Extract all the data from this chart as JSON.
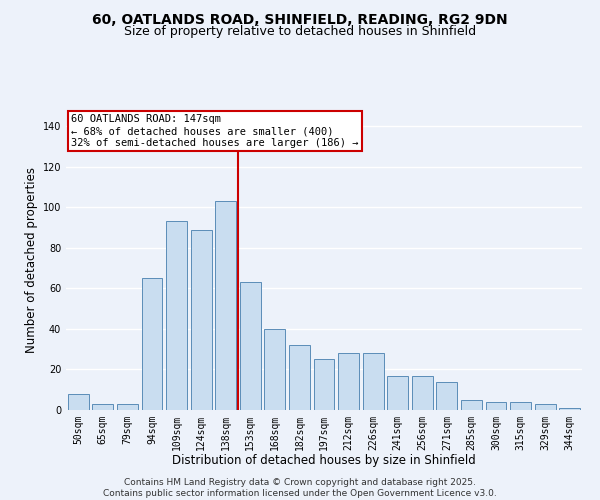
{
  "title1": "60, OATLANDS ROAD, SHINFIELD, READING, RG2 9DN",
  "title2": "Size of property relative to detached houses in Shinfield",
  "xlabel": "Distribution of detached houses by size in Shinfield",
  "ylabel": "Number of detached properties",
  "categories": [
    "50sqm",
    "65sqm",
    "79sqm",
    "94sqm",
    "109sqm",
    "124sqm",
    "138sqm",
    "153sqm",
    "168sqm",
    "182sqm",
    "197sqm",
    "212sqm",
    "226sqm",
    "241sqm",
    "256sqm",
    "271sqm",
    "285sqm",
    "300sqm",
    "315sqm",
    "329sqm",
    "344sqm"
  ],
  "values": [
    8,
    3,
    3,
    65,
    93,
    89,
    103,
    63,
    40,
    32,
    25,
    28,
    28,
    17,
    17,
    14,
    5,
    4,
    4,
    3,
    1
  ],
  "bar_color": "#c9ddf0",
  "bar_edge_color": "#5b8db8",
  "red_line_color": "#cc0000",
  "annotation_line1": "60 OATLANDS ROAD: 147sqm",
  "annotation_line2": "← 68% of detached houses are smaller (400)",
  "annotation_line3": "32% of semi-detached houses are larger (186) →",
  "annotation_box_color": "#ffffff",
  "annotation_box_edge_color": "#cc0000",
  "footer1": "Contains HM Land Registry data © Crown copyright and database right 2025.",
  "footer2": "Contains public sector information licensed under the Open Government Licence v3.0.",
  "ylim_max": 148,
  "yticks": [
    0,
    20,
    40,
    60,
    80,
    100,
    120,
    140
  ],
  "bg_color": "#edf2fa",
  "grid_color": "#ffffff",
  "title_fontsize": 10,
  "subtitle_fontsize": 9,
  "axis_label_fontsize": 8.5,
  "tick_fontsize": 7,
  "annot_fontsize": 7.5,
  "footer_fontsize": 6.5
}
